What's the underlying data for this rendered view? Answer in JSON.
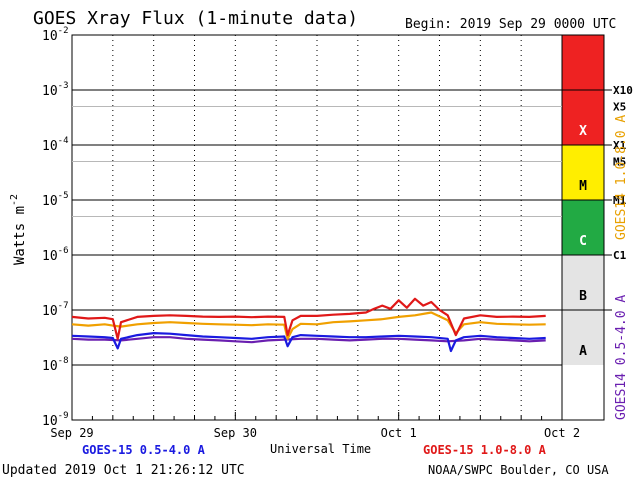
{
  "chart_data": {
    "type": "line",
    "title": "GOES Xray Flux (1-minute data)",
    "begin_label": "Begin:  2019 Sep 29 0000 UTC",
    "ylabel": "Watts m",
    "ylabel_sup": "-2",
    "xlabel": "Universal Time",
    "x_ticks": [
      "Sep 29",
      "Sep 30",
      "Oct 1",
      "Oct 2"
    ],
    "xlim_days": [
      0,
      3
    ],
    "yscale": "log",
    "ylim": [
      1e-09,
      0.01
    ],
    "y_ticks": [
      {
        "base": "10",
        "exp": "-2"
      },
      {
        "base": "10",
        "exp": "-3"
      },
      {
        "base": "10",
        "exp": "-4"
      },
      {
        "base": "10",
        "exp": "-5"
      },
      {
        "base": "10",
        "exp": "-6"
      },
      {
        "base": "10",
        "exp": "-7"
      },
      {
        "base": "10",
        "exp": "-8"
      },
      {
        "base": "10",
        "exp": "-9"
      }
    ],
    "flare_classes": [
      {
        "label": "X",
        "color": "#ee2222",
        "range": [
          0.0001,
          0.01
        ]
      },
      {
        "label": "M",
        "color": "#ffee00",
        "range": [
          1e-05,
          0.0001
        ]
      },
      {
        "label": "C",
        "color": "#22aa44",
        "range": [
          1e-06,
          1e-05
        ]
      },
      {
        "label": "B",
        "color": "#e4e4e4",
        "range": [
          1e-07,
          1e-06
        ]
      },
      {
        "label": "A",
        "color": "#e4e4e4",
        "range": [
          1e-08,
          1e-07
        ]
      }
    ],
    "right_levels": [
      {
        "label": "X10",
        "value": 0.001
      },
      {
        "label": "X5",
        "value": 0.0005
      },
      {
        "label": "X1",
        "value": 0.0001
      },
      {
        "label": "M5",
        "value": 5e-05
      },
      {
        "label": "M1",
        "value": 1e-05
      },
      {
        "label": "C1",
        "value": 1e-06
      }
    ],
    "right_axis_labels": [
      {
        "text": "GOES14 1.0-8.0 A",
        "color": "#e8a000"
      },
      {
        "text": "GOES14 0.5-4.0 A",
        "color": "#6a1fb0"
      }
    ],
    "series": [
      {
        "name": "GOES-15 1.0-8.0 A",
        "color": "#e01818",
        "x": [
          0.0,
          0.1,
          0.2,
          0.25,
          0.28,
          0.3,
          0.4,
          0.5,
          0.6,
          0.7,
          0.8,
          0.9,
          1.0,
          1.1,
          1.2,
          1.3,
          1.32,
          1.35,
          1.4,
          1.5,
          1.6,
          1.7,
          1.8,
          1.85,
          1.9,
          1.95,
          2.0,
          2.05,
          2.1,
          2.15,
          2.2,
          2.25,
          2.3,
          2.35,
          2.4,
          2.5,
          2.6,
          2.7,
          2.8,
          2.9
        ],
        "y": [
          7.5e-08,
          7e-08,
          7.2e-08,
          6.8e-08,
          3e-08,
          6e-08,
          7.5e-08,
          7.8e-08,
          8e-08,
          7.8e-08,
          7.6e-08,
          7.5e-08,
          7.6e-08,
          7.4e-08,
          7.6e-08,
          7.5e-08,
          3.5e-08,
          6.5e-08,
          7.8e-08,
          7.8e-08,
          8.2e-08,
          8.5e-08,
          9e-08,
          1.05e-07,
          1.2e-07,
          1.05e-07,
          1.5e-07,
          1.1e-07,
          1.6e-07,
          1.2e-07,
          1.4e-07,
          1e-07,
          8e-08,
          3.5e-08,
          7e-08,
          8e-08,
          7.5e-08,
          7.6e-08,
          7.5e-08,
          7.8e-08
        ]
      },
      {
        "name": "GOES14 1.0-8.0 A",
        "color": "#f0a000",
        "x": [
          0.0,
          0.1,
          0.2,
          0.25,
          0.3,
          0.4,
          0.5,
          0.6,
          0.7,
          0.8,
          0.9,
          1.0,
          1.1,
          1.2,
          1.3,
          1.32,
          1.35,
          1.4,
          1.5,
          1.6,
          1.7,
          1.8,
          1.9,
          2.0,
          2.1,
          2.2,
          2.3,
          2.35,
          2.4,
          2.5,
          2.6,
          2.7,
          2.8,
          2.9
        ],
        "y": [
          5.5e-08,
          5.2e-08,
          5.5e-08,
          5.2e-08,
          5e-08,
          5.5e-08,
          5.8e-08,
          6e-08,
          5.8e-08,
          5.6e-08,
          5.5e-08,
          5.4e-08,
          5.3e-08,
          5.5e-08,
          5.4e-08,
          3e-08,
          4.5e-08,
          5.6e-08,
          5.5e-08,
          6e-08,
          6.2e-08,
          6.5e-08,
          6.8e-08,
          7.5e-08,
          8e-08,
          9e-08,
          6.5e-08,
          3.8e-08,
          5.5e-08,
          6e-08,
          5.6e-08,
          5.5e-08,
          5.4e-08,
          5.5e-08
        ]
      },
      {
        "name": "GOES-15 0.5-4.0 A",
        "color": "#1a1ae0",
        "x": [
          0.0,
          0.1,
          0.2,
          0.25,
          0.28,
          0.3,
          0.4,
          0.5,
          0.6,
          0.7,
          0.8,
          0.9,
          1.0,
          1.1,
          1.2,
          1.3,
          1.32,
          1.35,
          1.4,
          1.5,
          1.6,
          1.7,
          1.8,
          1.9,
          2.0,
          2.1,
          2.2,
          2.3,
          2.32,
          2.35,
          2.4,
          2.5,
          2.6,
          2.7,
          2.8,
          2.9
        ],
        "y": [
          3.4e-08,
          3.3e-08,
          3.2e-08,
          3.1e-08,
          2e-08,
          3e-08,
          3.5e-08,
          3.8e-08,
          3.7e-08,
          3.5e-08,
          3.3e-08,
          3.2e-08,
          3.1e-08,
          3e-08,
          3.2e-08,
          3.3e-08,
          2.2e-08,
          3.2e-08,
          3.5e-08,
          3.4e-08,
          3.3e-08,
          3.2e-08,
          3.2e-08,
          3.3e-08,
          3.4e-08,
          3.3e-08,
          3.2e-08,
          3e-08,
          1.8e-08,
          2.8e-08,
          3.2e-08,
          3.4e-08,
          3.2e-08,
          3.1e-08,
          3e-08,
          3.1e-08
        ]
      },
      {
        "name": "GOES14 0.5-4.0 A",
        "color": "#6a1fb0",
        "x": [
          0.0,
          0.1,
          0.2,
          0.3,
          0.4,
          0.5,
          0.6,
          0.7,
          0.8,
          0.9,
          1.0,
          1.1,
          1.2,
          1.3,
          1.4,
          1.5,
          1.6,
          1.7,
          1.8,
          1.9,
          2.0,
          2.1,
          2.2,
          2.3,
          2.4,
          2.5,
          2.6,
          2.7,
          2.8,
          2.9
        ],
        "y": [
          3e-08,
          2.9e-08,
          2.9e-08,
          2.8e-08,
          3e-08,
          3.2e-08,
          3.2e-08,
          3e-08,
          2.9e-08,
          2.8e-08,
          2.7e-08,
          2.6e-08,
          2.8e-08,
          2.9e-08,
          3e-08,
          3e-08,
          2.9e-08,
          2.8e-08,
          2.9e-08,
          3e-08,
          3e-08,
          2.9e-08,
          2.8e-08,
          2.7e-08,
          2.8e-08,
          3e-08,
          2.9e-08,
          2.8e-08,
          2.7e-08,
          2.8e-08
        ]
      }
    ],
    "legend": [
      {
        "text": "GOES-15 0.5-4.0 A",
        "color": "#1a1ae0",
        "position": "bottom-left"
      },
      {
        "text": "GOES-15 1.0-8.0 A",
        "color": "#e01818",
        "position": "bottom-right"
      }
    ],
    "updated": "Updated 2019 Oct  1 21:26:12 UTC",
    "credit": "NOAA/SWPC Boulder, CO USA",
    "grid": true
  }
}
